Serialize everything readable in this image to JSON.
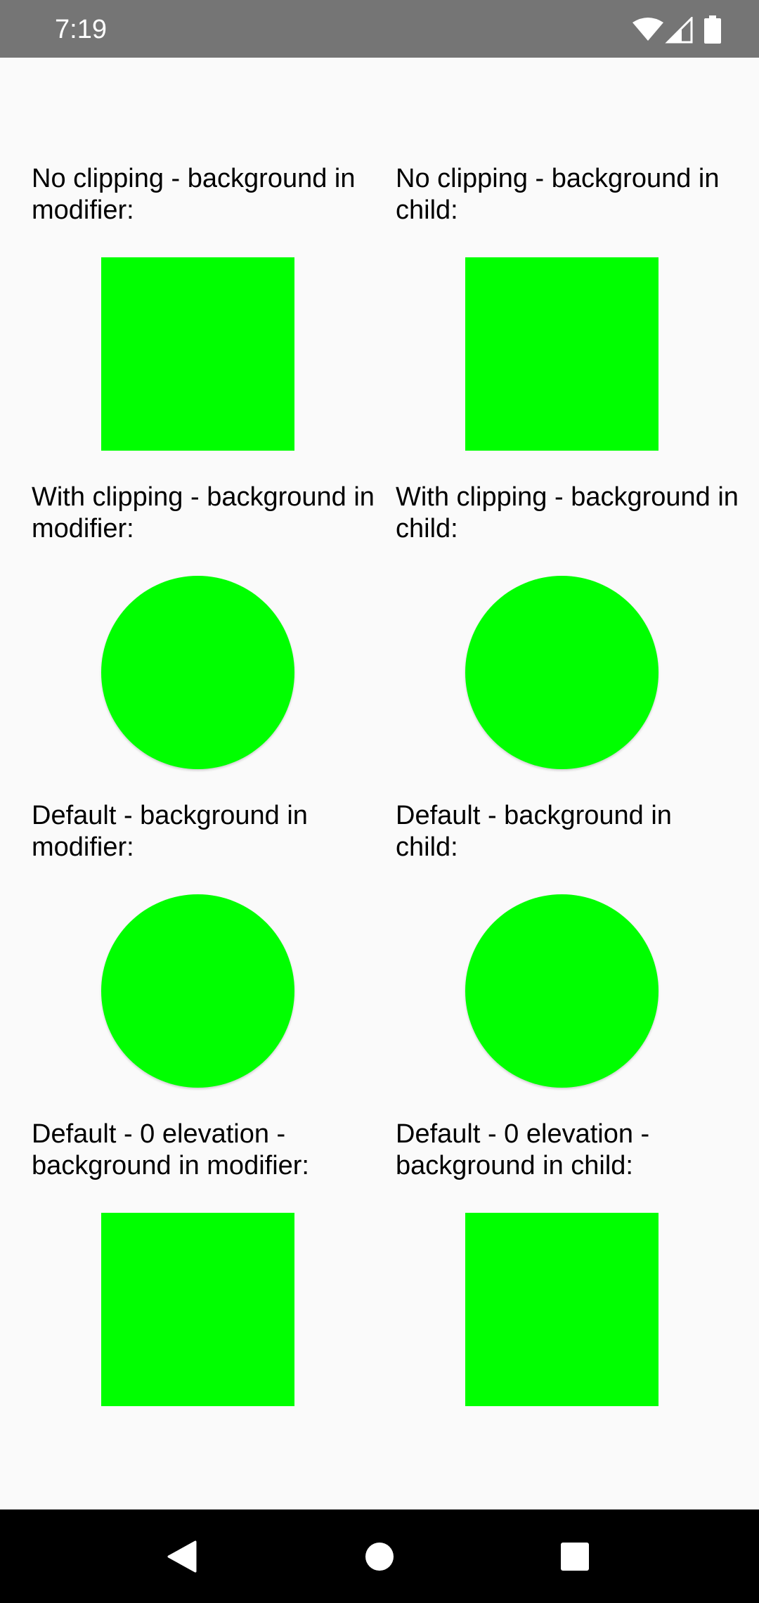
{
  "status_bar": {
    "time": "7:19",
    "icons": [
      "wifi-icon",
      "signal-icon",
      "battery-icon"
    ],
    "background": "#757575"
  },
  "content": {
    "background": "#fafafa",
    "accent": "#00ff00",
    "rows": [
      {
        "cells": [
          {
            "label": "No clipping - background in modifier:",
            "shape": "square"
          },
          {
            "label": "No clipping - background in child:",
            "shape": "square"
          }
        ]
      },
      {
        "cells": [
          {
            "label": "With clipping - background in modifier:",
            "shape": "circle"
          },
          {
            "label": "With clipping - background in child:",
            "shape": "circle"
          }
        ]
      },
      {
        "cells": [
          {
            "label": "Default - background in modifier:",
            "shape": "circle"
          },
          {
            "label": "Default - background in child:",
            "shape": "circle"
          }
        ]
      },
      {
        "cells": [
          {
            "label": "Default - 0 elevation - background in modifier:",
            "shape": "square"
          },
          {
            "label": "Default - 0 elevation - background in child:",
            "shape": "square"
          }
        ]
      }
    ]
  },
  "nav_bar": {
    "buttons": [
      "back-icon",
      "home-icon",
      "recents-icon"
    ]
  }
}
